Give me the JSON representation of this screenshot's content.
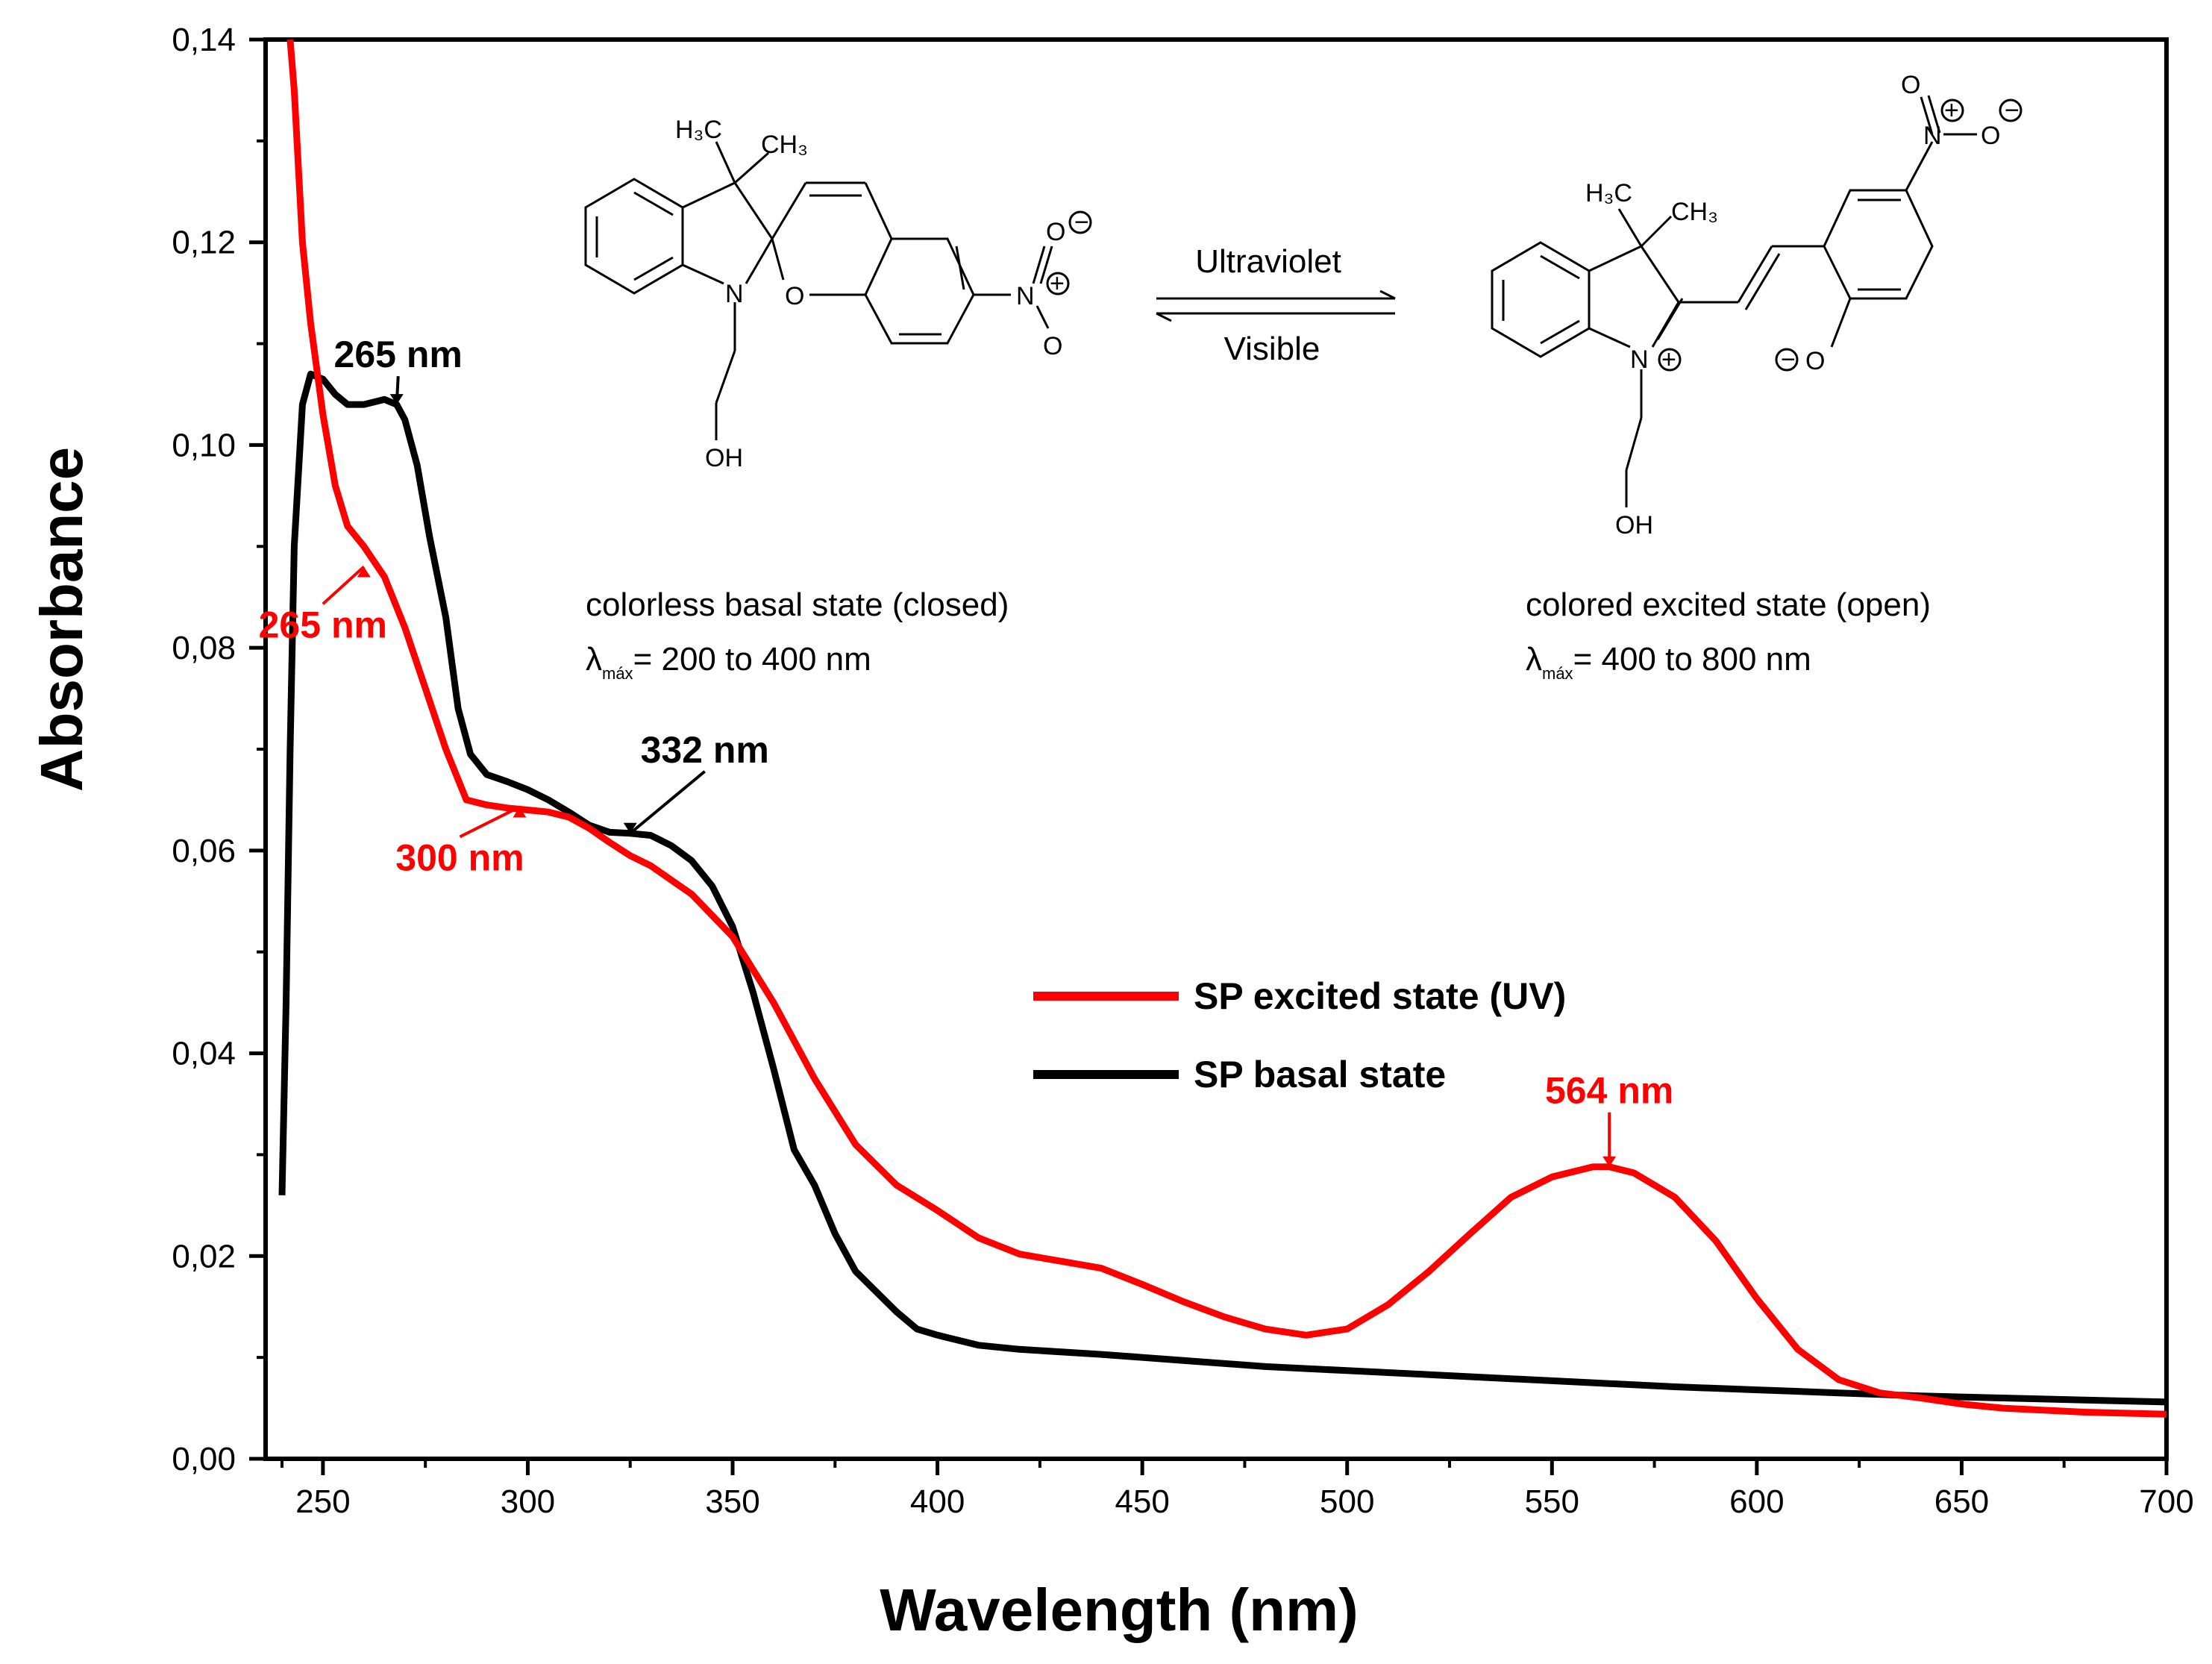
{
  "chart_data": {
    "type": "line",
    "xlabel": "Wavelength (nm)",
    "ylabel": "Absorbance",
    "xlim": [
      236,
      700
    ],
    "ylim": [
      0.0,
      0.14
    ],
    "x_ticks": [
      250,
      300,
      350,
      400,
      450,
      500,
      550,
      600,
      650,
      700
    ],
    "y_ticks": [
      "0,00",
      "0,02",
      "0,04",
      "0,06",
      "0,08",
      "0,10",
      "0,12",
      "0,14"
    ],
    "legend_position": "center-right",
    "series": [
      {
        "name": "SP excited state (UV)",
        "color": "#ff0000",
        "x": [
          242,
          243,
          245,
          247,
          250,
          253,
          256,
          260,
          265,
          270,
          275,
          280,
          285,
          290,
          295,
          300,
          305,
          310,
          315,
          320,
          325,
          330,
          340,
          350,
          360,
          370,
          380,
          390,
          400,
          410,
          420,
          430,
          440,
          450,
          460,
          470,
          480,
          490,
          500,
          510,
          520,
          530,
          540,
          550,
          560,
          564,
          570,
          580,
          590,
          600,
          610,
          620,
          630,
          640,
          650,
          660,
          680,
          700
        ],
        "y": [
          0.14,
          0.135,
          0.12,
          0.112,
          0.103,
          0.096,
          0.092,
          0.09,
          0.087,
          0.082,
          0.076,
          0.07,
          0.065,
          0.0645,
          0.0642,
          0.064,
          0.0638,
          0.0633,
          0.0622,
          0.0608,
          0.0595,
          0.0585,
          0.0557,
          0.0515,
          0.045,
          0.0375,
          0.031,
          0.027,
          0.0245,
          0.0218,
          0.0202,
          0.0195,
          0.0188,
          0.0172,
          0.0155,
          0.014,
          0.0128,
          0.0122,
          0.0128,
          0.0152,
          0.0185,
          0.0222,
          0.0258,
          0.0278,
          0.0288,
          0.0288,
          0.0282,
          0.0258,
          0.0215,
          0.0158,
          0.0108,
          0.0078,
          0.0065,
          0.006,
          0.0054,
          0.005,
          0.0046,
          0.0044
        ]
      },
      {
        "name": "SP basal state",
        "color": "#000000",
        "x": [
          240,
          241,
          242,
          243,
          245,
          247,
          250,
          253,
          256,
          260,
          265,
          268,
          270,
          273,
          276,
          280,
          283,
          286,
          290,
          295,
          300,
          305,
          310,
          315,
          320,
          325,
          330,
          335,
          340,
          345,
          350,
          355,
          360,
          365,
          370,
          375,
          380,
          385,
          390,
          395,
          400,
          410,
          420,
          440,
          460,
          480,
          500,
          520,
          540,
          560,
          580,
          600,
          620,
          640,
          660,
          680,
          700
        ],
        "y": [
          0.026,
          0.045,
          0.07,
          0.09,
          0.104,
          0.107,
          0.1065,
          0.105,
          0.104,
          0.104,
          0.1045,
          0.104,
          0.1025,
          0.098,
          0.091,
          0.083,
          0.074,
          0.0695,
          0.0675,
          0.0668,
          0.066,
          0.065,
          0.0638,
          0.0625,
          0.0618,
          0.0617,
          0.0615,
          0.0605,
          0.059,
          0.0565,
          0.0525,
          0.046,
          0.0385,
          0.0305,
          0.027,
          0.0222,
          0.0185,
          0.0165,
          0.0145,
          0.0128,
          0.0122,
          0.0112,
          0.0108,
          0.0103,
          0.0097,
          0.0091,
          0.0087,
          0.0083,
          0.0079,
          0.0075,
          0.0071,
          0.0068,
          0.0065,
          0.0062,
          0.006,
          0.0058,
          0.0056
        ]
      }
    ],
    "annotations": [
      {
        "text": "265 nm",
        "series": "SP basal state",
        "x": 268,
        "y": 0.104,
        "color": "#000000"
      },
      {
        "text": "332 nm",
        "series": "SP basal state",
        "x": 325,
        "y": 0.0617,
        "color": "#000000"
      },
      {
        "text": "265 nm",
        "series": "SP excited state (UV)",
        "x": 260,
        "y": 0.088,
        "color": "#ff0000"
      },
      {
        "text": "300 nm",
        "series": "SP excited state (UV)",
        "x": 298,
        "y": 0.0643,
        "color": "#ff0000"
      },
      {
        "text": "564 nm",
        "series": "SP excited state (UV)",
        "x": 564,
        "y": 0.0288,
        "color": "#ff0000"
      }
    ]
  },
  "inset": {
    "closed_state_label": "colorless basal state (closed)",
    "closed_lambda_symbol": "λ",
    "closed_lambda_sub": "máx",
    "closed_lambda_range": "= 200 to 400 nm",
    "open_state_label": "colored excited state (open)",
    "open_lambda_symbol": "λ",
    "open_lambda_sub": "máx",
    "open_lambda_range": "= 400 to 800 nm",
    "arrow_top_label": "Ultraviolet",
    "arrow_bottom_label": "Visible",
    "closed_atoms": {
      "ch3_a": "H₃C",
      "ch3_b": "CH₃",
      "n": "N",
      "o": "O",
      "oh": "OH",
      "no2_n": "N",
      "no2_o1": "O",
      "no2_o2": "O",
      "minus": "−",
      "plus": "+"
    },
    "open_atoms": {
      "ch3_a": "H₃C",
      "ch3_b": "CH₃",
      "n": "N",
      "o": "O",
      "oh": "OH",
      "no2_n": "N",
      "no2_o1": "O",
      "no2_o2": "O",
      "minus": "−",
      "plus": "+"
    }
  }
}
